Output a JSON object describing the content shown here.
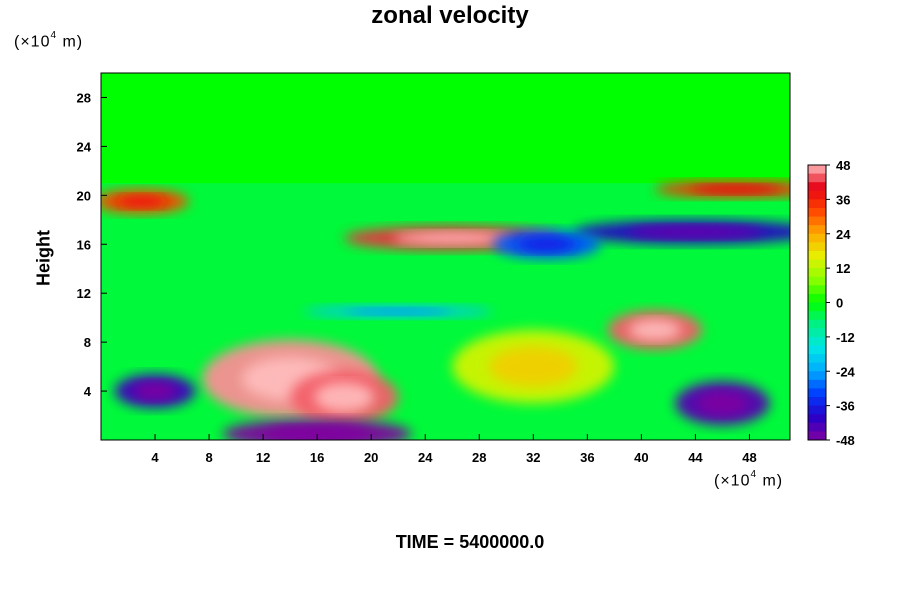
{
  "chart_data": {
    "type": "heatmap",
    "title": "zonal velocity",
    "ylabel": "Height",
    "xlabel": "",
    "x_unit_label": "(×10^4 m)",
    "y_unit_label": "(×10^4 m)",
    "footer": "TIME = 5400000.0",
    "x_ticks": [
      4,
      8,
      12,
      16,
      20,
      24,
      28,
      32,
      36,
      40,
      44,
      48
    ],
    "y_ticks": [
      4,
      8,
      12,
      16,
      20,
      24,
      28
    ],
    "xlim": [
      0,
      51
    ],
    "ylim": [
      0,
      30
    ],
    "colorbar": {
      "ticks": [
        48,
        36,
        24,
        12,
        0,
        -12,
        -24,
        -36,
        -48
      ],
      "range": [
        -48,
        48
      ]
    },
    "features": [
      {
        "x": 14,
        "y": 5,
        "value": 46
      },
      {
        "x": 18,
        "y": 3.5,
        "value": 44
      },
      {
        "x": 26,
        "y": 16.5,
        "value": 42
      },
      {
        "x": 41,
        "y": 9,
        "value": 44
      },
      {
        "x": 16,
        "y": 0.5,
        "value": -48
      },
      {
        "x": 46,
        "y": 3,
        "value": -44
      },
      {
        "x": 4,
        "y": 4,
        "value": -42
      },
      {
        "x": 44,
        "y": 17,
        "value": -40
      },
      {
        "x": 33,
        "y": 16,
        "value": -30
      },
      {
        "x": 3,
        "y": 19.5,
        "value": 32
      },
      {
        "x": 47,
        "y": 20.5,
        "value": 34
      },
      {
        "x": 22,
        "y": 10.5,
        "value": -20
      },
      {
        "x": 32,
        "y": 6,
        "value": 14
      }
    ]
  }
}
